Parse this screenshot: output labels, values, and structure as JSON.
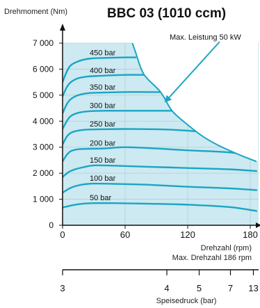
{
  "chart_data": {
    "type": "line",
    "title": "BBC 03 (1010 ccm)",
    "ylabel": "Drehmoment (Nm)",
    "xlabel": "Drehzahl (rpm)",
    "x_note": "Max. Drehzahl 186 rpm",
    "power_label": "Max. Leistung 50 kW",
    "xlim": [
      0,
      186
    ],
    "ylim": [
      0,
      7000
    ],
    "x_ticks": [
      0,
      60,
      120,
      180
    ],
    "x_tick_labels": [
      "0",
      "60",
      "120",
      "180"
    ],
    "y_ticks": [
      0,
      1000,
      2000,
      3000,
      4000,
      5000,
      6000,
      7000
    ],
    "y_tick_labels": [
      "0",
      "1 000",
      "2 000",
      "3 000",
      "4 000",
      "5 000",
      "6 000",
      "7 000"
    ],
    "grid": true,
    "colors": {
      "curve": "#1aa5c4",
      "fill": "#cde9f1",
      "arrow": "#1aa5c4",
      "axis": "#111111"
    },
    "series": [
      {
        "name": "50 bar",
        "x": [
          0,
          6,
          12,
          20,
          30,
          50,
          80,
          120,
          160,
          186
        ],
        "y": [
          680,
          740,
          790,
          830,
          850,
          850,
          830,
          790,
          700,
          550
        ]
      },
      {
        "name": "100 bar",
        "x": [
          0,
          6,
          12,
          20,
          30,
          50,
          80,
          120,
          160,
          186
        ],
        "y": [
          1250,
          1400,
          1500,
          1570,
          1600,
          1590,
          1560,
          1480,
          1420,
          1350
        ]
      },
      {
        "name": "150 bar",
        "x": [
          0,
          6,
          12,
          20,
          30,
          50,
          80,
          120,
          160,
          186
        ],
        "y": [
          1850,
          2050,
          2150,
          2230,
          2300,
          2290,
          2250,
          2200,
          2150,
          2080
        ]
      },
      {
        "name": "200 bar",
        "x": [
          0,
          4,
          8,
          15,
          25,
          40,
          60,
          90,
          120,
          160,
          186
        ],
        "y": [
          2450,
          2700,
          2850,
          2920,
          2940,
          2950,
          3000,
          2950,
          2880,
          2800,
          2620
        ]
      },
      {
        "name": "250 bar",
        "x": [
          0,
          4,
          8,
          15,
          25,
          40,
          60,
          100,
          132
        ],
        "y": [
          3100,
          3400,
          3550,
          3640,
          3680,
          3690,
          3700,
          3680,
          3600
        ]
      },
      {
        "name": "300 bar",
        "x": [
          0,
          4,
          8,
          15,
          25,
          40,
          60,
          80,
          105
        ],
        "y": [
          3700,
          4000,
          4200,
          4320,
          4380,
          4400,
          4400,
          4400,
          4400
        ]
      },
      {
        "name": "350 bar",
        "x": [
          0,
          4,
          8,
          15,
          25,
          40,
          60,
          80,
          94
        ],
        "y": [
          4300,
          4650,
          4850,
          5000,
          5080,
          5100,
          5120,
          5120,
          5120
        ]
      },
      {
        "name": "400 bar",
        "x": [
          0,
          4,
          8,
          15,
          25,
          40,
          60,
          78
        ],
        "y": [
          4950,
          5300,
          5500,
          5650,
          5720,
          5750,
          5780,
          5780
        ]
      },
      {
        "name": "450 bar",
        "x": [
          0,
          4,
          8,
          15,
          25,
          40,
          60,
          70
        ],
        "y": [
          5500,
          5900,
          6150,
          6300,
          6400,
          6430,
          6450,
          6450
        ]
      }
    ],
    "power_limit": {
      "x": [
        67,
        70,
        78,
        94,
        105,
        120,
        135,
        150,
        170,
        186
      ],
      "y": [
        7000,
        6650,
        5800,
        5120,
        4400,
        3860,
        3400,
        3060,
        2700,
        2450
      ]
    },
    "pressure_axis": {
      "xlabel": "Speisedruck (bar)",
      "ticks": [
        {
          "label": "3",
          "rpm": 0
        },
        {
          "label": "4",
          "rpm": 100
        },
        {
          "label": "5",
          "rpm": 131
        },
        {
          "label": "7",
          "rpm": 161
        },
        {
          "label": "13",
          "rpm": 183
        }
      ]
    }
  }
}
